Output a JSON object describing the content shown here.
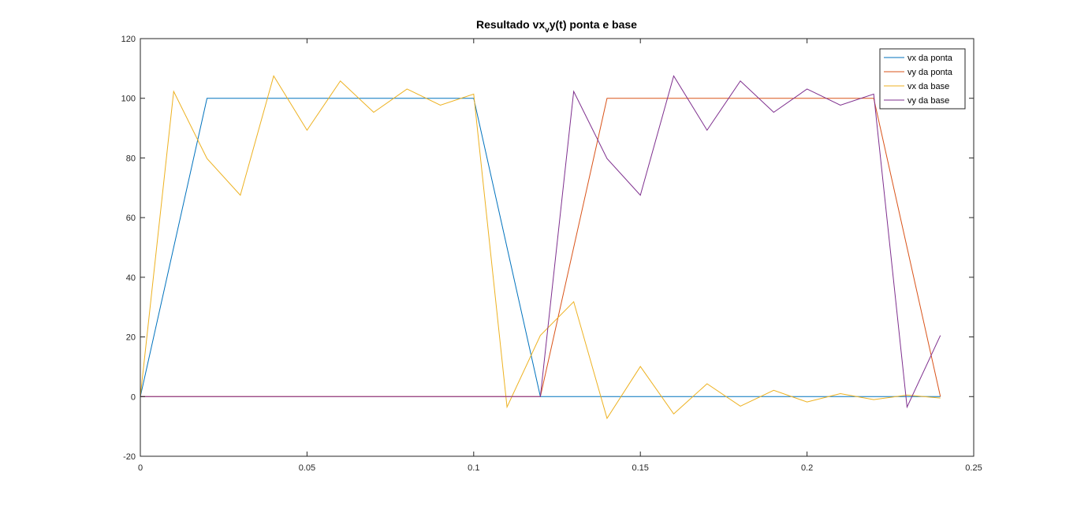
{
  "chart_data": {
    "type": "line",
    "title": "Resultado vx",
    "title_sub": "v",
    "title_end": "y(t) ponta e base",
    "xlabel": "",
    "ylabel": "",
    "xlim": [
      0,
      0.25
    ],
    "ylim": [
      -20,
      120
    ],
    "xticks": [
      0,
      0.05,
      0.1,
      0.15,
      0.2,
      0.25
    ],
    "xtick_labels": [
      "0",
      "0.05",
      "0.1",
      "0.15",
      "0.2",
      "0.25"
    ],
    "yticks": [
      -20,
      0,
      20,
      40,
      60,
      80,
      100,
      120
    ],
    "ytick_labels": [
      "-20",
      "0",
      "20",
      "40",
      "60",
      "80",
      "100",
      "120"
    ],
    "grid": false,
    "legend_position": "top-right",
    "series": [
      {
        "name": "vx da ponta",
        "color": "#0072BD",
        "x": [
          0,
          0.02,
          0.1,
          0.12,
          0.24
        ],
        "y": [
          0,
          100,
          100,
          0,
          0
        ]
      },
      {
        "name": " vy da ponta",
        "color": "#D95319",
        "x": [
          0,
          0.12,
          0.14,
          0.22,
          0.24
        ],
        "y": [
          0,
          0,
          100,
          100,
          0
        ]
      },
      {
        "name": "vx da base",
        "color": "#EDB120",
        "x": [
          0,
          0.01,
          0.02,
          0.03,
          0.04,
          0.05,
          0.06,
          0.07,
          0.08,
          0.09,
          0.1,
          0.11,
          0.12,
          0.13,
          0.14,
          0.15,
          0.16,
          0.17,
          0.18,
          0.19,
          0.2,
          0.21,
          0.22,
          0.23,
          0.24
        ],
        "y": [
          0,
          102.3,
          79.8,
          67.5,
          107.5,
          89.3,
          105.8,
          95.3,
          103.1,
          97.7,
          101.4,
          -3.5,
          20.5,
          31.8,
          -7.3,
          10.1,
          -5.8,
          4.3,
          -3.2,
          2.1,
          -1.8,
          1.0,
          -1.0,
          0.5,
          -0.5
        ]
      },
      {
        "name": "vy da base",
        "color": "#7E2F8E",
        "x": [
          0,
          0.1,
          0.11,
          0.12,
          0.13,
          0.14,
          0.15,
          0.16,
          0.17,
          0.18,
          0.19,
          0.2,
          0.21,
          0.22,
          0.23,
          0.24
        ],
        "y": [
          0,
          0,
          0,
          0,
          102.3,
          79.8,
          67.5,
          107.5,
          89.3,
          105.8,
          95.3,
          103.1,
          97.7,
          101.4,
          -3.5,
          20.5
        ]
      }
    ]
  }
}
